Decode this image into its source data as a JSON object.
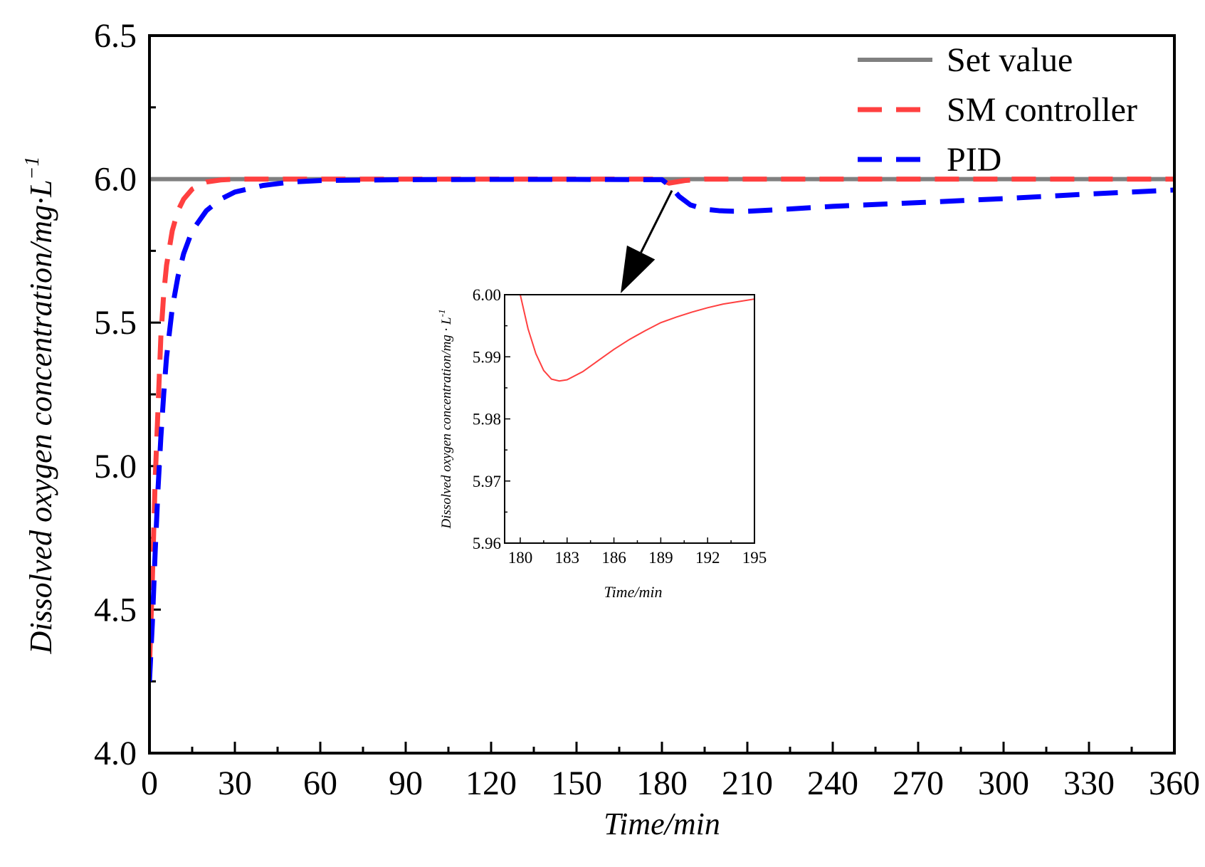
{
  "chart_data": [
    {
      "type": "line",
      "name": "main",
      "xlabel": "Time/min",
      "ylabel": "Dissolved oxygen concentration/mg·L",
      "ylabel_sup": "−1",
      "xlim": [
        0,
        360
      ],
      "ylim": [
        4.0,
        6.5
      ],
      "xticks": [
        "0",
        "30",
        "60",
        "90",
        "120",
        "150",
        "180",
        "210",
        "240",
        "270",
        "300",
        "330",
        "360"
      ],
      "yticks": [
        "4.0",
        "4.5",
        "5.0",
        "5.5",
        "6.0",
        "6.5"
      ],
      "legend_position": "top-right",
      "series": [
        {
          "name": "Set value",
          "color": "#808080",
          "style": "solid",
          "x": [
            0,
            360
          ],
          "y": [
            6.0,
            6.0
          ]
        },
        {
          "name": "SM controller",
          "color": "#ff4040",
          "style": "dashed",
          "x": [
            0,
            1,
            2,
            3,
            4,
            5,
            6,
            8,
            10,
            12,
            15,
            20,
            25,
            30,
            60,
            120,
            180,
            181,
            182.5,
            185,
            188,
            192,
            195,
            220,
            360
          ],
          "y": [
            4.3,
            4.6,
            4.95,
            5.2,
            5.45,
            5.6,
            5.7,
            5.82,
            5.89,
            5.93,
            5.965,
            5.99,
            5.997,
            6.0,
            6.0,
            6.0,
            6.0,
            5.992,
            5.986,
            5.99,
            5.995,
            5.998,
            6.0,
            6.0,
            6.0
          ]
        },
        {
          "name": "PID",
          "color": "#0000ff",
          "style": "dashed",
          "x": [
            0,
            1,
            2,
            3,
            4,
            5,
            6,
            8,
            10,
            12,
            15,
            20,
            25,
            30,
            40,
            50,
            60,
            90,
            120,
            150,
            180,
            183,
            186,
            190,
            195,
            200,
            205,
            210,
            220,
            240,
            270,
            300,
            330,
            360
          ],
          "y": [
            4.25,
            4.45,
            4.7,
            4.92,
            5.1,
            5.25,
            5.38,
            5.55,
            5.66,
            5.74,
            5.82,
            5.89,
            5.93,
            5.955,
            5.978,
            5.99,
            5.995,
            5.998,
            5.999,
            5.999,
            5.998,
            5.975,
            5.94,
            5.91,
            5.895,
            5.89,
            5.888,
            5.888,
            5.893,
            5.905,
            5.918,
            5.932,
            5.948,
            5.962
          ]
        }
      ]
    },
    {
      "type": "line",
      "name": "inset",
      "xlabel": "Time/min",
      "ylabel": "Dissolved oxygen concentration/mg · L",
      "ylabel_sup": "-1",
      "xlim": [
        179,
        195
      ],
      "ylim": [
        5.96,
        6.0
      ],
      "xticks": [
        "180",
        "183",
        "186",
        "189",
        "192",
        "195"
      ],
      "yticks": [
        "5.96",
        "5.97",
        "5.98",
        "5.99",
        "6.00"
      ],
      "series": [
        {
          "name": "SM controller",
          "color": "#ff4040",
          "style": "solid",
          "x": [
            180,
            180.5,
            181,
            181.5,
            182,
            182.5,
            183,
            184,
            185,
            186,
            187,
            188,
            189,
            190,
            191,
            192,
            193,
            194,
            195
          ],
          "y": [
            6.0,
            5.9945,
            5.9905,
            5.9878,
            5.9864,
            5.9861,
            5.9863,
            5.9876,
            5.9894,
            5.9912,
            5.9928,
            5.9942,
            5.9955,
            5.9964,
            5.9972,
            5.9979,
            5.9985,
            5.9989,
            5.9993
          ]
        }
      ]
    }
  ],
  "annotation": {
    "type": "arrow",
    "from": {
      "x": 183,
      "y": 5.985
    },
    "to_inset": "top-center"
  }
}
